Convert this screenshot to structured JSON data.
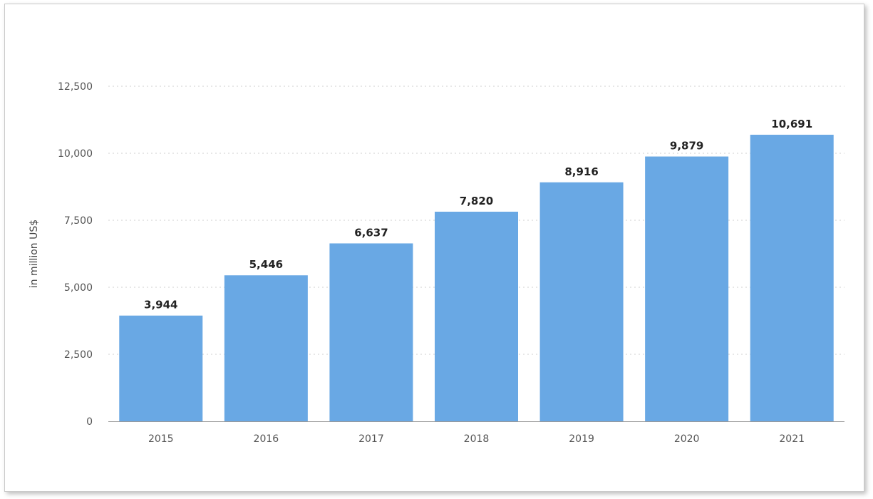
{
  "chart_data": {
    "type": "bar",
    "title": "",
    "xlabel": "",
    "ylabel": "in million US$",
    "categories": [
      "2015",
      "2016",
      "2017",
      "2018",
      "2019",
      "2020",
      "2021"
    ],
    "values": [
      3944,
      5446,
      6637,
      7820,
      8916,
      9879,
      10691
    ],
    "value_labels": [
      "3,944",
      "5,446",
      "6,637",
      "7,820",
      "8,916",
      "9,879",
      "10,691"
    ],
    "ylim": [
      0,
      12500
    ],
    "yticks": [
      0,
      2500,
      5000,
      7500,
      10000,
      12500
    ],
    "ytick_labels": [
      "0",
      "2,500",
      "5,000",
      "7,500",
      "10,000",
      "12,500"
    ],
    "grid": true,
    "bar_color": "#69a8e4"
  }
}
